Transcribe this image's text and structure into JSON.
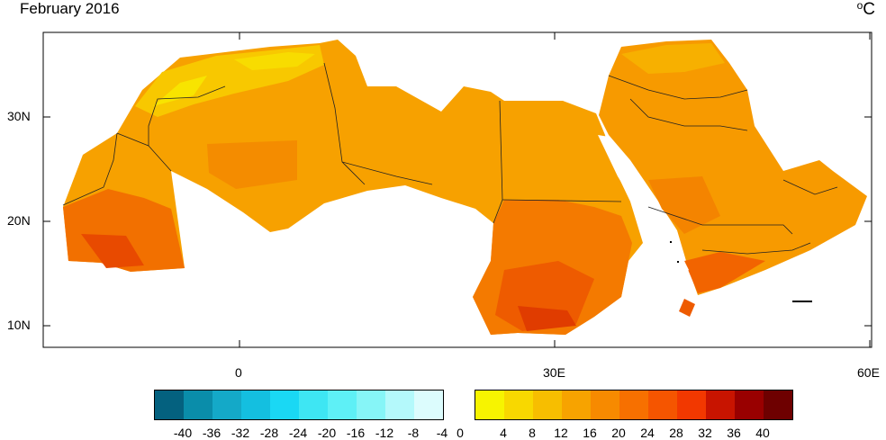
{
  "title": "February 2016",
  "unit": {
    "degree": "o",
    "symbol": "C"
  },
  "axes": {
    "x_ticks": [
      "0",
      "30E",
      "60E"
    ],
    "y_ticks": [
      "30N",
      "20N",
      "10N"
    ]
  },
  "colorbar": {
    "cold_colors": [
      "#04617f",
      "#0a8daa",
      "#14a9c8",
      "#14bfe0",
      "#1ad8f4",
      "#3ee6f3",
      "#5ef0f6",
      "#86f5f7",
      "#b4f9fb",
      "#dcfcfd"
    ],
    "warm_colors": [
      "#f7f400",
      "#f8d800",
      "#f7be00",
      "#f7a300",
      "#f78a00",
      "#f77000",
      "#f55500",
      "#f23800",
      "#c81400",
      "#990000",
      "#6e0000"
    ],
    "labels": [
      "-40",
      "-36",
      "-32",
      "-28",
      "-24",
      "-20",
      "-16",
      "-12",
      "-8",
      "-4",
      "0",
      "4",
      "8",
      "12",
      "16",
      "20",
      "24",
      "28",
      "32",
      "36",
      "40"
    ]
  },
  "colors": {
    "land_base": "#f7a100",
    "warm_hot": "#f26a00",
    "hottest": "#e53a00",
    "cool": "#f7c400",
    "coolest": "#f7e800"
  }
}
